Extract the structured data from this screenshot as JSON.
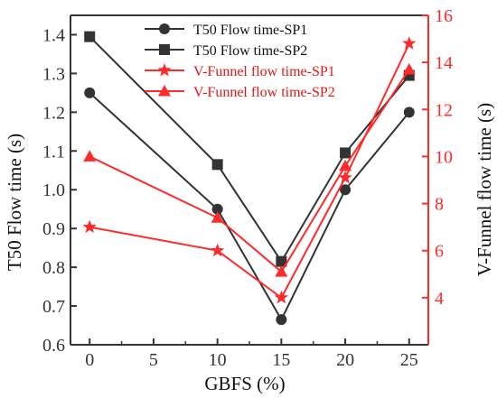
{
  "chart_data": {
    "type": "line",
    "x": [
      0,
      10,
      15,
      20,
      25
    ],
    "xlabel": "GBFS (%)",
    "xlim": [
      -1.5,
      26.5
    ],
    "xticks": [
      0,
      5,
      10,
      15,
      20,
      25
    ],
    "ylabel_left": "T50 Flow time (s)",
    "ylim_left": [
      0.6,
      1.45
    ],
    "yticks_left": [
      "0.6",
      "0.7",
      "0.8",
      "0.9",
      "1.0",
      "1.1",
      "1.2",
      "1.3",
      "1.4"
    ],
    "ylabel_right": "V-Funnel flow time (s)",
    "ylim_right": [
      2,
      16
    ],
    "yticks_right": [
      "4",
      "6",
      "8",
      "10",
      "12",
      "14",
      "16"
    ],
    "legend_position": "top-center",
    "series": [
      {
        "name": "T50 Flow time-SP1",
        "axis": "left",
        "color": "#333333",
        "marker": "circle",
        "values": [
          1.25,
          0.95,
          0.665,
          1.0,
          1.2
        ]
      },
      {
        "name": "T50 Flow time-SP2",
        "axis": "left",
        "color": "#333333",
        "marker": "square",
        "values": [
          1.395,
          1.065,
          0.815,
          1.095,
          1.295
        ]
      },
      {
        "name": "V-Funnel flow time-SP1",
        "axis": "right",
        "color": "#ff2a2a",
        "marker": "star",
        "values": [
          7.0,
          6.0,
          4.0,
          9.1,
          14.8
        ]
      },
      {
        "name": "V-Funnel flow time-SP2",
        "axis": "right",
        "color": "#ff2a2a",
        "marker": "triangle",
        "values": [
          10.0,
          7.4,
          5.1,
          9.6,
          13.7
        ]
      }
    ]
  }
}
